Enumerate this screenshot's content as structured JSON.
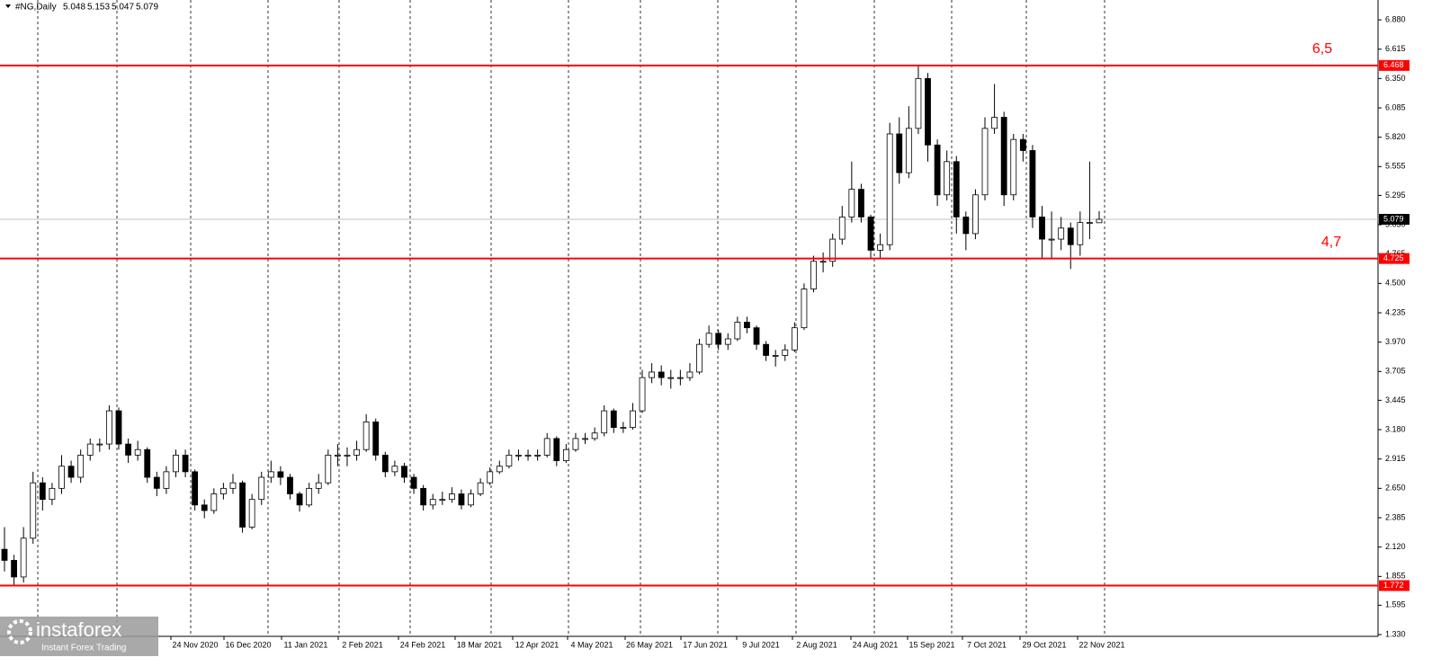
{
  "chart_data": {
    "type": "candlestick",
    "title": "#NG,Daily",
    "series": [
      {
        "open": [
          2.1,
          2.0,
          1.85,
          2.2,
          2.7,
          2.55,
          2.65,
          2.85,
          2.75,
          2.95,
          3.05,
          3.05,
          3.35,
          3.05,
          2.95,
          3.0,
          2.75,
          2.65,
          2.8,
          2.95,
          2.8,
          2.5,
          2.45,
          2.6,
          2.65,
          2.7,
          2.3,
          2.55,
          2.75,
          2.8,
          2.75,
          2.6,
          2.5,
          2.65,
          2.7,
          2.95,
          2.95,
          2.95,
          3.0,
          3.25,
          2.95,
          2.8,
          2.85,
          2.75,
          2.65,
          2.5,
          2.55,
          2.55,
          2.6,
          2.5,
          2.6,
          2.7,
          2.8,
          2.85,
          2.95,
          2.95,
          2.95,
          2.95,
          3.1,
          2.9,
          3.0,
          3.1,
          3.1,
          3.15,
          3.35,
          3.2,
          3.2,
          3.35,
          3.65,
          3.7,
          3.65,
          3.65,
          3.65,
          3.7,
          3.95,
          4.05,
          3.95,
          4.0,
          4.15,
          4.1,
          3.95,
          3.85,
          3.85,
          3.9,
          4.1,
          4.45,
          4.7,
          4.7,
          4.9,
          5.1,
          5.35,
          5.1,
          4.8,
          4.85,
          5.85,
          5.5,
          5.9,
          6.35,
          5.75,
          5.3,
          5.6,
          5.1,
          4.95,
          5.3,
          5.9,
          6.0,
          5.3,
          5.8,
          5.7,
          5.1,
          4.9,
          4.9,
          5.0,
          4.85,
          5.05,
          5.048
        ],
        "high": [
          2.3,
          2.05,
          2.3,
          2.8,
          2.75,
          2.7,
          2.95,
          2.9,
          3.0,
          3.1,
          3.1,
          3.4,
          3.38,
          3.1,
          3.08,
          3.02,
          2.8,
          2.85,
          3.0,
          3.0,
          2.82,
          2.55,
          2.65,
          2.7,
          2.78,
          2.72,
          2.6,
          2.8,
          2.9,
          2.85,
          2.78,
          2.62,
          2.7,
          2.78,
          3.0,
          3.05,
          3.02,
          3.08,
          3.32,
          3.28,
          2.98,
          2.9,
          2.88,
          2.78,
          2.68,
          2.6,
          2.62,
          2.66,
          2.64,
          2.64,
          2.74,
          2.84,
          2.9,
          3.0,
          3.0,
          3.0,
          3.0,
          3.15,
          3.12,
          3.05,
          3.15,
          3.15,
          3.2,
          3.4,
          3.37,
          3.25,
          3.42,
          3.72,
          3.78,
          3.76,
          3.72,
          3.72,
          3.78,
          4.0,
          4.12,
          4.08,
          4.05,
          4.2,
          4.2,
          4.12,
          3.98,
          3.9,
          3.95,
          4.15,
          4.5,
          4.75,
          4.78,
          4.95,
          5.2,
          5.6,
          5.4,
          5.12,
          4.95,
          5.95,
          6.0,
          6.1,
          6.468,
          6.4,
          5.8,
          5.7,
          5.65,
          5.15,
          5.35,
          6.0,
          6.3,
          6.05,
          5.85,
          5.85,
          5.75,
          5.2,
          5.15,
          5.1,
          5.05,
          5.15,
          5.6,
          5.153
        ],
        "low": [
          1.9,
          1.78,
          1.8,
          2.15,
          2.45,
          2.5,
          2.6,
          2.7,
          2.7,
          2.9,
          2.98,
          3.0,
          3.0,
          2.88,
          2.9,
          2.7,
          2.58,
          2.6,
          2.75,
          2.75,
          2.45,
          2.38,
          2.42,
          2.55,
          2.6,
          2.25,
          2.28,
          2.5,
          2.7,
          2.68,
          2.55,
          2.44,
          2.48,
          2.6,
          2.68,
          2.85,
          2.85,
          2.9,
          2.98,
          2.9,
          2.75,
          2.76,
          2.7,
          2.6,
          2.45,
          2.46,
          2.5,
          2.52,
          2.46,
          2.48,
          2.58,
          2.68,
          2.78,
          2.83,
          2.9,
          2.9,
          2.9,
          2.93,
          2.85,
          2.88,
          2.98,
          3.05,
          3.08,
          3.12,
          3.15,
          3.15,
          3.18,
          3.33,
          3.6,
          3.58,
          3.55,
          3.58,
          3.62,
          3.68,
          3.92,
          3.9,
          3.9,
          3.98,
          4.05,
          3.9,
          3.8,
          3.75,
          3.8,
          3.88,
          4.08,
          4.42,
          4.6,
          4.65,
          4.85,
          5.05,
          5.05,
          4.72,
          4.72,
          4.8,
          5.4,
          5.45,
          5.85,
          5.6,
          5.2,
          5.25,
          4.95,
          4.8,
          4.9,
          5.25,
          5.85,
          5.2,
          5.25,
          5.6,
          5.0,
          4.72,
          4.72,
          4.8,
          4.63,
          4.75,
          4.9,
          5.047
        ],
        "close": [
          2.0,
          1.85,
          2.2,
          2.7,
          2.55,
          2.65,
          2.85,
          2.75,
          2.95,
          3.05,
          3.05,
          3.35,
          3.05,
          2.95,
          3.0,
          2.75,
          2.65,
          2.8,
          2.95,
          2.8,
          2.5,
          2.45,
          2.6,
          2.65,
          2.7,
          2.3,
          2.55,
          2.75,
          2.8,
          2.75,
          2.6,
          2.5,
          2.65,
          2.7,
          2.95,
          2.95,
          2.95,
          3.0,
          3.25,
          2.95,
          2.8,
          2.85,
          2.75,
          2.65,
          2.5,
          2.55,
          2.55,
          2.6,
          2.5,
          2.6,
          2.7,
          2.8,
          2.85,
          2.95,
          2.95,
          2.95,
          2.95,
          3.1,
          2.9,
          3.0,
          3.1,
          3.1,
          3.15,
          3.35,
          3.2,
          3.2,
          3.35,
          3.65,
          3.7,
          3.65,
          3.65,
          3.65,
          3.7,
          3.95,
          4.05,
          3.95,
          4.0,
          4.15,
          4.1,
          3.95,
          3.85,
          3.85,
          3.9,
          4.1,
          4.45,
          4.7,
          4.7,
          4.9,
          5.1,
          5.35,
          5.1,
          4.8,
          4.85,
          5.85,
          5.5,
          5.9,
          6.35,
          5.75,
          5.3,
          5.6,
          5.1,
          4.95,
          5.3,
          5.9,
          6.0,
          5.3,
          5.8,
          5.7,
          5.1,
          4.9,
          4.9,
          5.0,
          4.85,
          5.05,
          5.05,
          5.079
        ]
      }
    ],
    "ylim": [
      1.314,
      7.059
    ],
    "yticks": [
      {
        "value": 6.88,
        "label": "6.880"
      },
      {
        "value": 6.615,
        "label": "6.615"
      },
      {
        "value": 6.35,
        "label": "6.350"
      },
      {
        "value": 6.085,
        "label": "6.085"
      },
      {
        "value": 5.82,
        "label": "5.820"
      },
      {
        "value": 5.555,
        "label": "5.555"
      },
      {
        "value": 5.295,
        "label": "5.295"
      },
      {
        "value": 5.03,
        "label": "5.030"
      },
      {
        "value": 4.765,
        "label": "4.765"
      },
      {
        "value": 4.5,
        "label": "4.500"
      },
      {
        "value": 4.235,
        "label": "4.235"
      },
      {
        "value": 3.97,
        "label": "3.970"
      },
      {
        "value": 3.705,
        "label": "3.705"
      },
      {
        "value": 3.445,
        "label": "3.445"
      },
      {
        "value": 3.18,
        "label": "3.180"
      },
      {
        "value": 2.915,
        "label": "2.915"
      },
      {
        "value": 2.65,
        "label": "2.650"
      },
      {
        "value": 2.385,
        "label": "2.385"
      },
      {
        "value": 2.12,
        "label": "2.120"
      },
      {
        "value": 1.855,
        "label": "1.855"
      },
      {
        "value": 1.595,
        "label": "1.595"
      },
      {
        "value": 1.33,
        "label": "1.330"
      }
    ],
    "x_labels": [
      "24 Nov 2020",
      "16 Dec 2020",
      "11 Jan 2021",
      "2 Feb 2021",
      "24 Feb 2021",
      "18 Mar 2021",
      "12 Apr 2021",
      "4 May 2021",
      "26 May 2021",
      "17 Jun 2021",
      "9 Jul 2021",
      "2 Aug 2021",
      "24 Aug 2021",
      "15 Sep 2021",
      "7 Oct 2021",
      "29 Oct 2021",
      "22 Nov 2021"
    ],
    "levels": [
      6.468,
      4.725,
      1.772
    ],
    "level_color": "#ff0000",
    "current_price": 5.079,
    "annotations": [
      "6,5",
      "4,7"
    ],
    "watermark": [
      "instaforex",
      "Instant Forex Trading"
    ]
  }
}
